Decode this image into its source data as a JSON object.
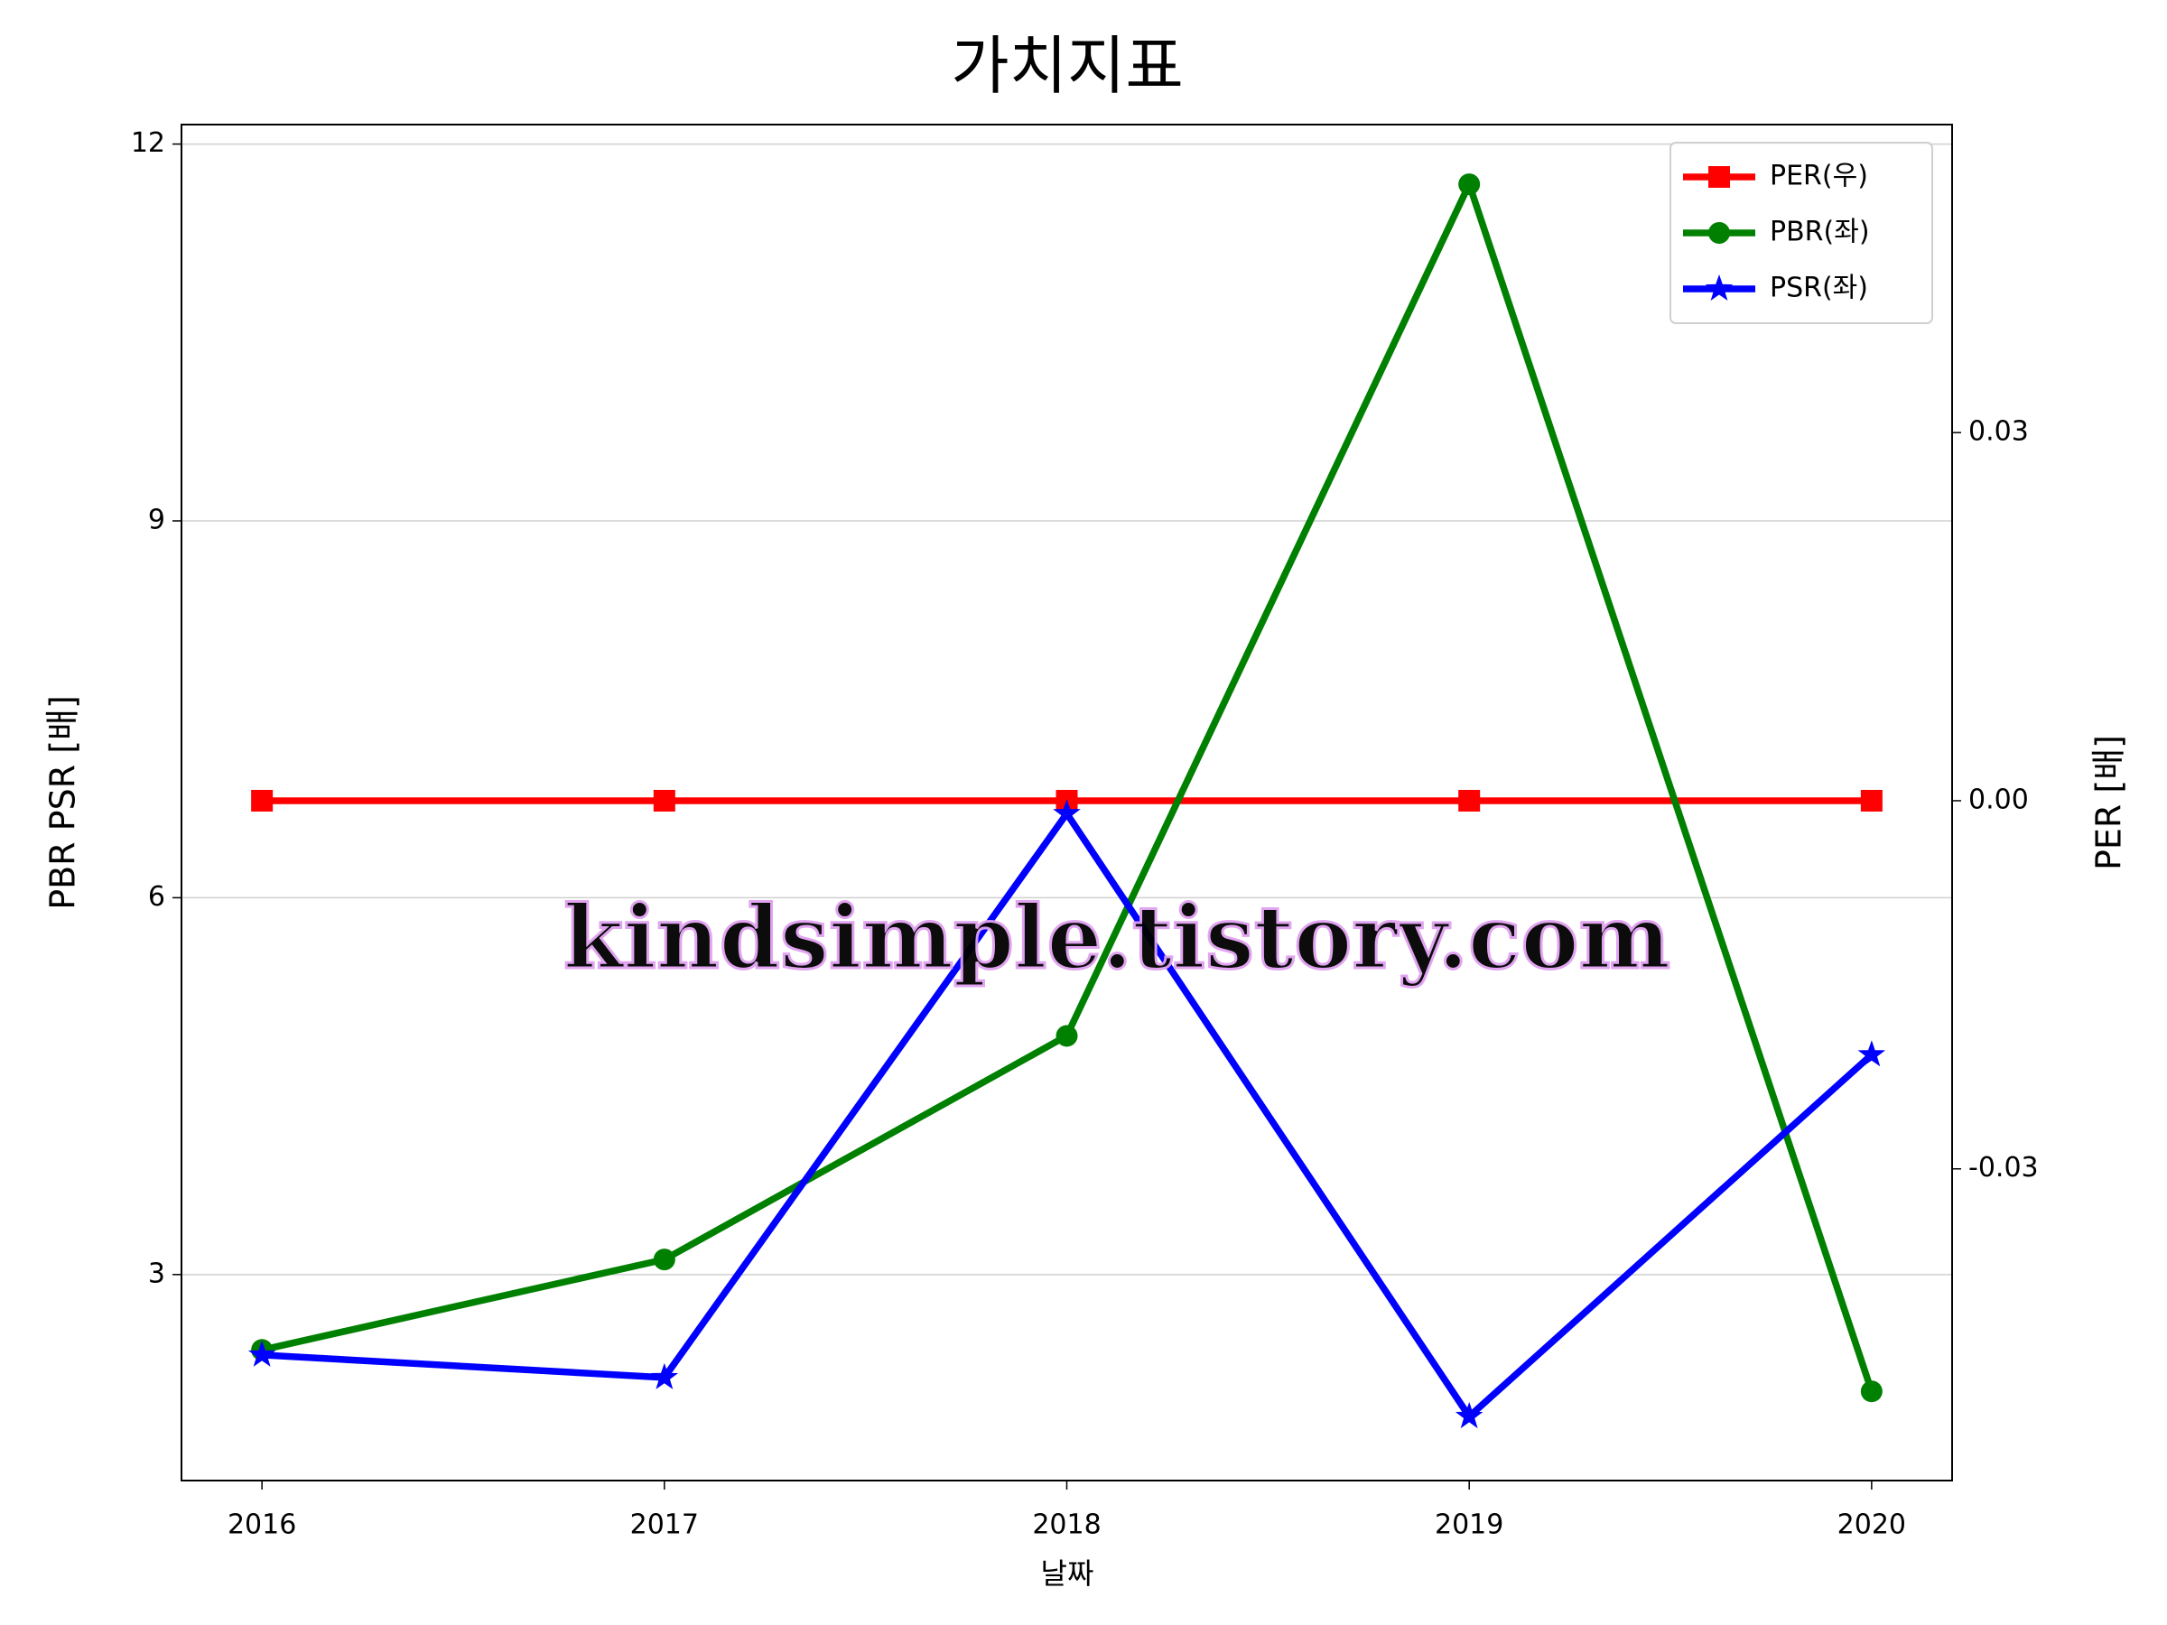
{
  "chart_data": {
    "type": "line",
    "title": "가치지표",
    "x_label": "날짜",
    "y_label": "PBR PSR [배]",
    "y_label_color": "#008000",
    "y2_label": "PER [배]",
    "y2_label_color": "#ff0000",
    "watermark": "kindsimple.tistory.com",
    "x": [
      2016,
      2017,
      2018,
      2019,
      2020
    ],
    "xlim": [
      2015.8,
      2020.2
    ],
    "xticks": [
      2016,
      2017,
      2018,
      2019,
      2020
    ],
    "ylim": [
      1.36,
      12.155
    ],
    "yticks": [
      3,
      6,
      9,
      12
    ],
    "y2lim": [
      -0.0554,
      0.0551
    ],
    "y2ticks": [
      {
        "value": -0.03,
        "label": "-0.03"
      },
      {
        "value": 0,
        "label": "0.00"
      },
      {
        "value": 0.03,
        "label": "0.03"
      }
    ],
    "grid": true,
    "legend": "upper right",
    "series": [
      {
        "name": "PER(우)",
        "color": "#ff0000",
        "marker": "square",
        "axis": "y2",
        "values": [
          0,
          0,
          0,
          0,
          0
        ]
      },
      {
        "name": "PBR(좌)",
        "color": "#008000",
        "marker": "circle",
        "axis": "y",
        "values": [
          2.4,
          3.12,
          4.9,
          11.68,
          2.07
        ]
      },
      {
        "name": "PSR(좌)",
        "color": "#0000ff",
        "marker": "star",
        "axis": "y",
        "values": [
          2.36,
          2.18,
          6.67,
          1.87,
          4.75
        ]
      }
    ]
  }
}
